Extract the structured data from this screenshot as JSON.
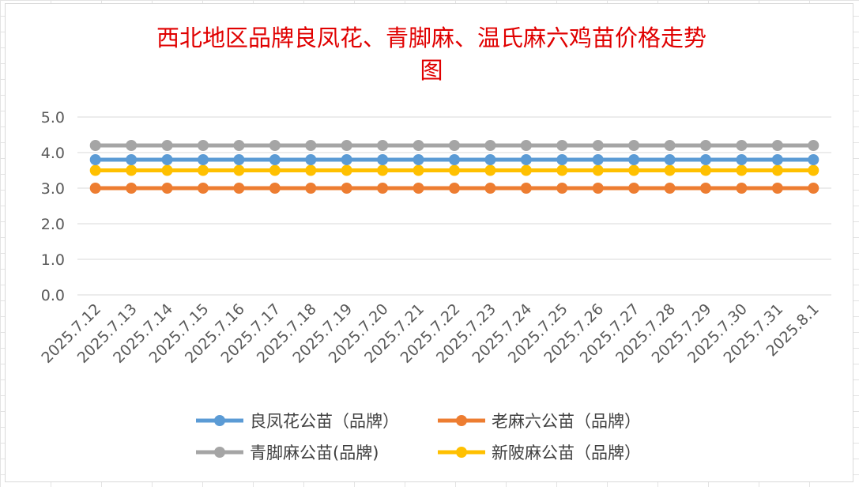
{
  "chart_data": {
    "type": "line",
    "title_lines": [
      "西北地区品牌良凤花、青脚麻、温氏麻六鸡苗价格走势",
      "图"
    ],
    "xlabel": "",
    "ylabel": "",
    "categories": [
      "2025.7.12",
      "2025.7.13",
      "2025.7.14",
      "2025.7.15",
      "2025.7.16",
      "2025.7.17",
      "2025.7.18",
      "2025.7.19",
      "2025.7.20",
      "2025.7.21",
      "2025.7.22",
      "2025.7.23",
      "2025.7.24",
      "2025.7.25",
      "2025.7.26",
      "2025.7.27",
      "2025.7.28",
      "2025.7.29",
      "2025.7.30",
      "2025.7.31",
      "2025.8.1"
    ],
    "ylim": [
      0,
      5
    ],
    "yticks": [
      "0.0",
      "1.0",
      "2.0",
      "3.0",
      "4.0",
      "5.0"
    ],
    "grid": true,
    "legend_position": "bottom",
    "series": [
      {
        "name": "良凤花公苗（品牌）",
        "color": "#5b9bd5",
        "values": [
          3.8,
          3.8,
          3.8,
          3.8,
          3.8,
          3.8,
          3.8,
          3.8,
          3.8,
          3.8,
          3.8,
          3.8,
          3.8,
          3.8,
          3.8,
          3.8,
          3.8,
          3.8,
          3.8,
          3.8,
          3.8
        ]
      },
      {
        "name": "老麻六公苗（品牌）",
        "color": "#ed7d31",
        "values": [
          3.0,
          3.0,
          3.0,
          3.0,
          3.0,
          3.0,
          3.0,
          3.0,
          3.0,
          3.0,
          3.0,
          3.0,
          3.0,
          3.0,
          3.0,
          3.0,
          3.0,
          3.0,
          3.0,
          3.0,
          3.0
        ]
      },
      {
        "name": "青脚麻公苗(品牌)",
        "color": "#a5a5a5",
        "values": [
          4.2,
          4.2,
          4.2,
          4.2,
          4.2,
          4.2,
          4.2,
          4.2,
          4.2,
          4.2,
          4.2,
          4.2,
          4.2,
          4.2,
          4.2,
          4.2,
          4.2,
          4.2,
          4.2,
          4.2,
          4.2
        ]
      },
      {
        "name": "新陂麻公苗（品牌）",
        "color": "#ffc000",
        "values": [
          3.5,
          3.5,
          3.5,
          3.5,
          3.5,
          3.5,
          3.5,
          3.5,
          3.5,
          3.5,
          3.5,
          3.5,
          3.5,
          3.5,
          3.5,
          3.5,
          3.5,
          3.5,
          3.5,
          3.5,
          3.5
        ]
      }
    ]
  }
}
